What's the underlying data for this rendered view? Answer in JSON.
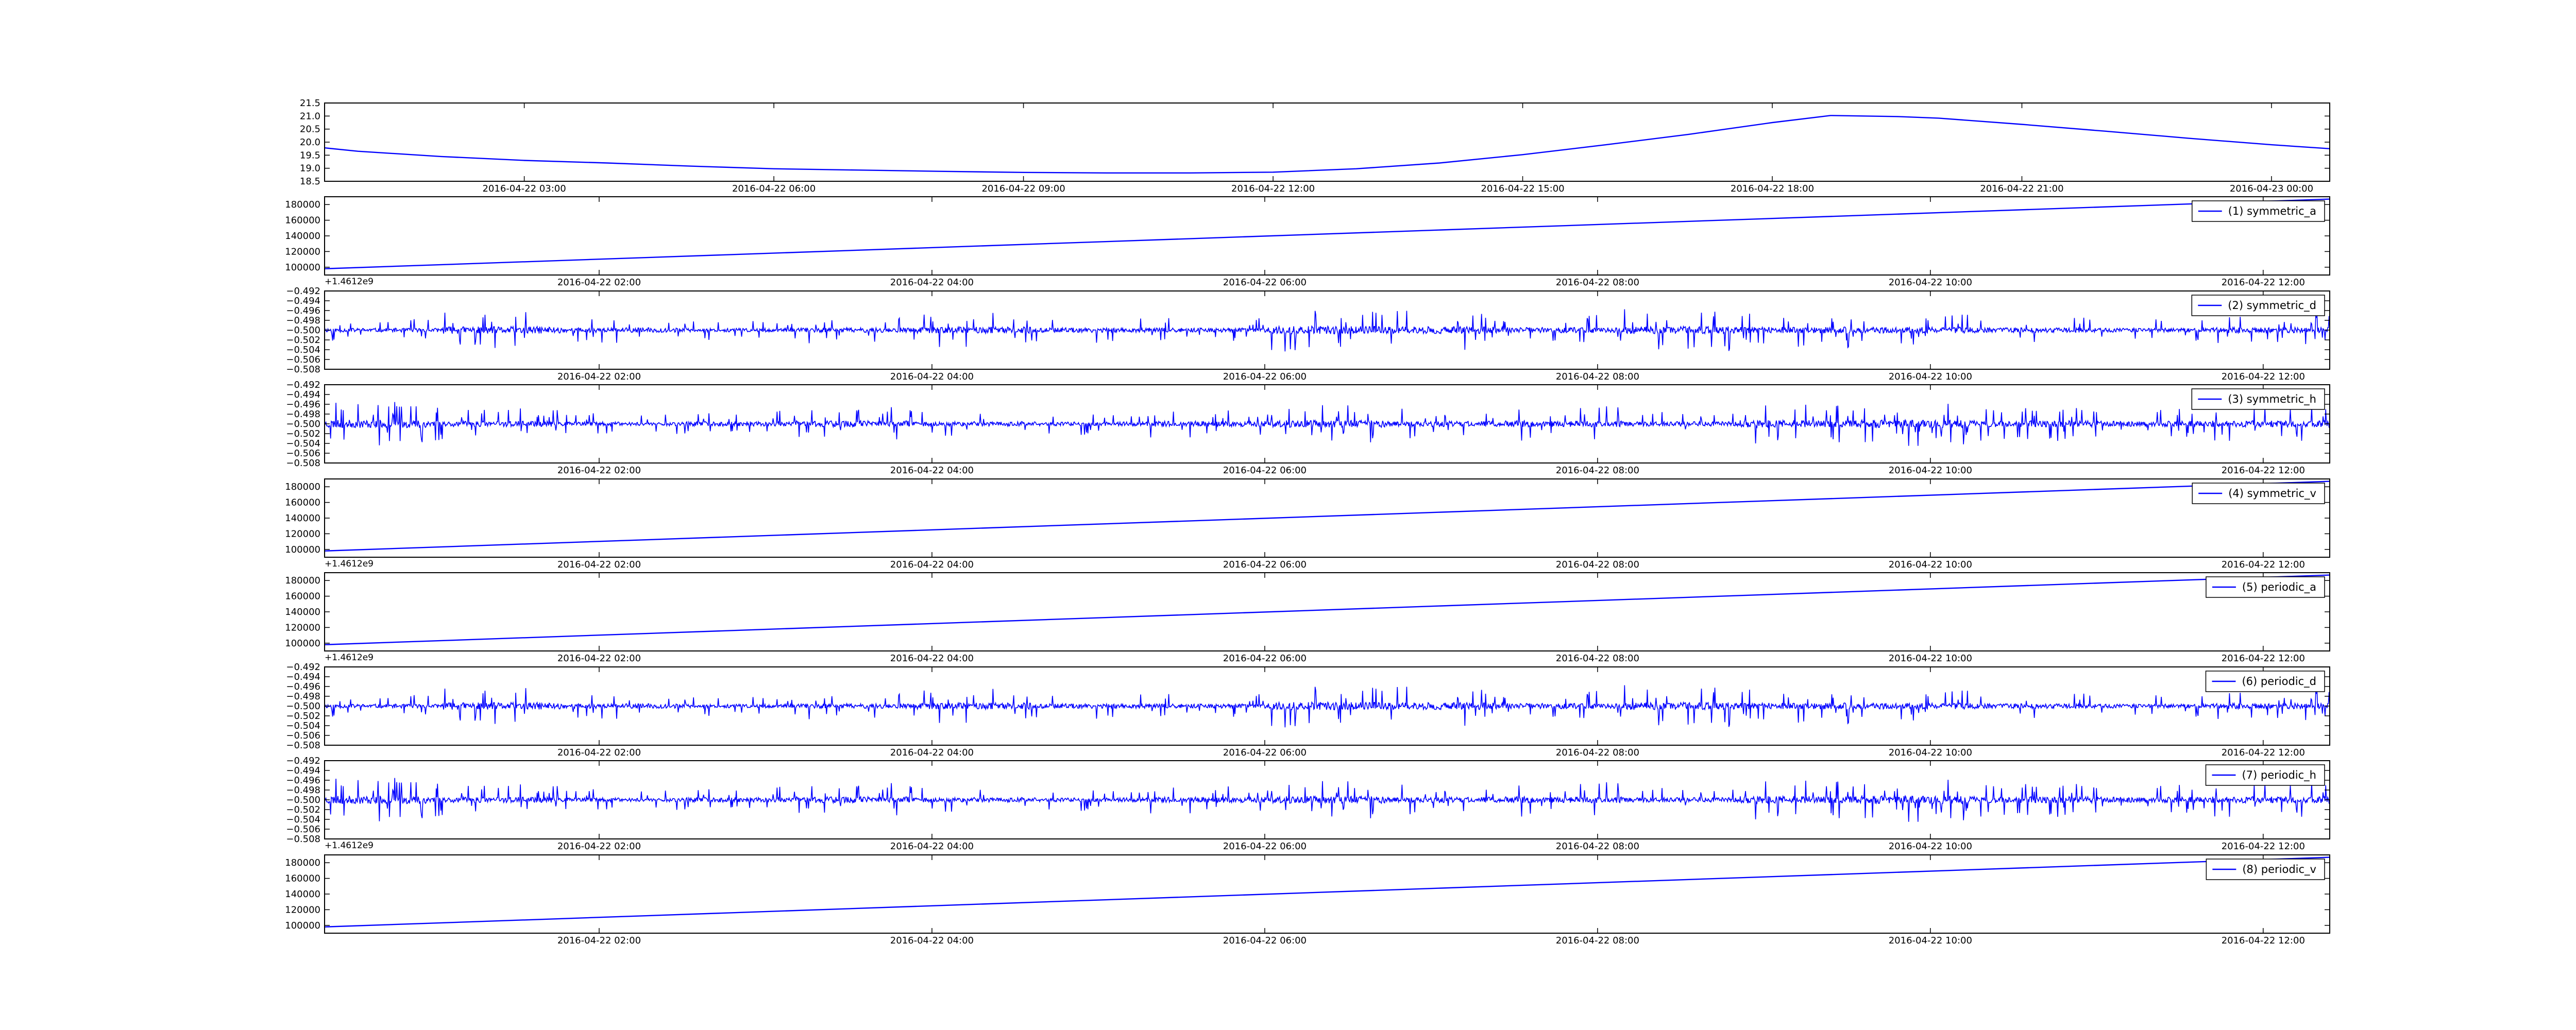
{
  "chart_data": [
    {
      "type": "line",
      "title": "",
      "xlabel": "",
      "ylabel": "",
      "y_ticks": [
        "18.5",
        "19.0",
        "19.5",
        "20.0",
        "20.5",
        "21.0",
        "21.5"
      ],
      "ylim": [
        18.5,
        21.5
      ],
      "x_ticks": [
        "2016-04-22 03:00",
        "2016-04-22 06:00",
        "2016-04-22 09:00",
        "2016-04-22 12:00",
        "2016-04-22 15:00",
        "2016-04-22 18:00",
        "2016-04-22 21:00",
        "2016-04-23 00:00"
      ],
      "x_range_hours": [
        0.6,
        24.7
      ],
      "points_hours": [
        0.6,
        1.0,
        2.0,
        3.0,
        4.0,
        5.0,
        6.0,
        7.0,
        8.0,
        9.0,
        10.0,
        11.0,
        12.0,
        13.0,
        14.0,
        15.0,
        16.0,
        17.0,
        18.0,
        18.7,
        19.5,
        20.0,
        21.0,
        22.0,
        23.0,
        24.0,
        24.7
      ],
      "values": [
        19.78,
        19.65,
        19.45,
        19.3,
        19.2,
        19.08,
        18.98,
        18.93,
        18.88,
        18.84,
        18.82,
        18.82,
        18.85,
        18.98,
        19.2,
        19.52,
        19.9,
        20.3,
        20.75,
        21.02,
        20.98,
        20.92,
        20.68,
        20.42,
        20.15,
        19.9,
        19.75
      ],
      "series": [
        {
          "color": "#0000ff"
        }
      ],
      "offset_label": "",
      "legend": "",
      "grid": false
    },
    {
      "type": "line",
      "y_ticks": [
        "100000",
        "120000",
        "140000",
        "160000",
        "180000"
      ],
      "ylim": [
        90000,
        190000
      ],
      "x_ticks": [
        "2016-04-22 02:00",
        "2016-04-22 04:00",
        "2016-04-22 06:00",
        "2016-04-22 08:00",
        "2016-04-22 10:00",
        "2016-04-22 12:00"
      ],
      "x_range_hours": [
        0.35,
        12.4
      ],
      "points_hours": [
        0.35,
        12.4
      ],
      "values": [
        98000,
        187000
      ],
      "series": [
        {
          "color": "#0000ff"
        }
      ],
      "offset_label": "+1.4612e9",
      "legend": "(1) symmetric_a",
      "legend_placement": "upper right",
      "grid": false
    },
    {
      "type": "line",
      "y_ticks": [
        "−0.508",
        "−0.506",
        "−0.504",
        "−0.502",
        "−0.500",
        "−0.498",
        "−0.496",
        "−0.494",
        "−0.492"
      ],
      "ylim": [
        -0.508,
        -0.492
      ],
      "x_ticks": [
        "2016-04-22 02:00",
        "2016-04-22 04:00",
        "2016-04-22 06:00",
        "2016-04-22 08:00",
        "2016-04-22 10:00",
        "2016-04-22 12:00"
      ],
      "x_range_hours": [
        0.35,
        12.4
      ],
      "noise": {
        "center": -0.5,
        "amplitude": 0.0045,
        "activity": [
          0.5,
          0.9,
          0.6,
          0.45,
          0.6,
          0.8,
          0.6,
          0.55,
          1.0,
          0.9,
          0.7,
          0.95,
          0.8,
          0.75,
          0.6,
          0.5,
          0.7
        ],
        "seed": 11
      },
      "series": [
        {
          "color": "#0000ff"
        }
      ],
      "offset_label": "",
      "legend": "(2) symmetric_d",
      "legend_placement": "upper right",
      "grid": false
    },
    {
      "type": "line",
      "y_ticks": [
        "−0.508",
        "−0.506",
        "−0.504",
        "−0.502",
        "−0.500",
        "−0.498",
        "−0.496",
        "−0.494",
        "−0.492"
      ],
      "ylim": [
        -0.508,
        -0.492
      ],
      "x_ticks": [
        "2016-04-22 02:00",
        "2016-04-22 04:00",
        "2016-04-22 06:00",
        "2016-04-22 08:00",
        "2016-04-22 10:00",
        "2016-04-22 12:00"
      ],
      "x_range_hours": [
        0.35,
        12.4
      ],
      "noise": {
        "center": -0.5,
        "amplitude": 0.0045,
        "activity": [
          1.0,
          0.7,
          0.5,
          0.6,
          0.8,
          0.6,
          0.5,
          0.7,
          0.9,
          0.7,
          0.8,
          0.6,
          0.9,
          1.0,
          0.8,
          0.7,
          0.8
        ],
        "seed": 23
      },
      "series": [
        {
          "color": "#0000ff"
        }
      ],
      "offset_label": "",
      "legend": "(3) symmetric_h",
      "legend_placement": "upper right",
      "grid": false
    },
    {
      "type": "line",
      "y_ticks": [
        "100000",
        "120000",
        "140000",
        "160000",
        "180000"
      ],
      "ylim": [
        90000,
        190000
      ],
      "x_ticks": [
        "2016-04-22 02:00",
        "2016-04-22 04:00",
        "2016-04-22 06:00",
        "2016-04-22 08:00",
        "2016-04-22 10:00",
        "2016-04-22 12:00"
      ],
      "x_range_hours": [
        0.35,
        12.4
      ],
      "points_hours": [
        0.35,
        12.4
      ],
      "values": [
        98000,
        187000
      ],
      "series": [
        {
          "color": "#0000ff"
        }
      ],
      "offset_label": "+1.4612e9",
      "legend": "(4) symmetric_v",
      "legend_placement": "upper right",
      "grid": false
    },
    {
      "type": "line",
      "y_ticks": [
        "100000",
        "120000",
        "140000",
        "160000",
        "180000"
      ],
      "ylim": [
        90000,
        190000
      ],
      "x_ticks": [
        "2016-04-22 02:00",
        "2016-04-22 04:00",
        "2016-04-22 06:00",
        "2016-04-22 08:00",
        "2016-04-22 10:00",
        "2016-04-22 12:00"
      ],
      "x_range_hours": [
        0.35,
        12.4
      ],
      "points_hours": [
        0.35,
        12.4
      ],
      "values": [
        98000,
        187000
      ],
      "series": [
        {
          "color": "#0000ff"
        }
      ],
      "offset_label": "+1.4612e9",
      "legend": "(5) periodic_a",
      "legend_placement": "upper right",
      "grid": false
    },
    {
      "type": "line",
      "y_ticks": [
        "−0.508",
        "−0.506",
        "−0.504",
        "−0.502",
        "−0.500",
        "−0.498",
        "−0.496",
        "−0.494",
        "−0.492"
      ],
      "ylim": [
        -0.508,
        -0.492
      ],
      "x_ticks": [
        "2016-04-22 02:00",
        "2016-04-22 04:00",
        "2016-04-22 06:00",
        "2016-04-22 08:00",
        "2016-04-22 10:00",
        "2016-04-22 12:00"
      ],
      "x_range_hours": [
        0.35,
        12.4
      ],
      "noise": {
        "center": -0.5,
        "amplitude": 0.0045,
        "activity": [
          0.5,
          0.9,
          0.6,
          0.45,
          0.6,
          0.8,
          0.6,
          0.55,
          1.0,
          0.9,
          0.7,
          0.95,
          0.8,
          0.75,
          0.6,
          0.5,
          0.7
        ],
        "seed": 11
      },
      "series": [
        {
          "color": "#0000ff"
        }
      ],
      "offset_label": "",
      "legend": "(6) periodic_d",
      "legend_placement": "upper right",
      "grid": false
    },
    {
      "type": "line",
      "y_ticks": [
        "−0.508",
        "−0.506",
        "−0.504",
        "−0.502",
        "−0.500",
        "−0.498",
        "−0.496",
        "−0.494",
        "−0.492"
      ],
      "ylim": [
        -0.508,
        -0.492
      ],
      "x_ticks": [
        "2016-04-22 02:00",
        "2016-04-22 04:00",
        "2016-04-22 06:00",
        "2016-04-22 08:00",
        "2016-04-22 10:00",
        "2016-04-22 12:00"
      ],
      "x_range_hours": [
        0.35,
        12.4
      ],
      "noise": {
        "center": -0.5,
        "amplitude": 0.0045,
        "activity": [
          1.0,
          0.7,
          0.5,
          0.6,
          0.8,
          0.6,
          0.5,
          0.7,
          0.9,
          0.7,
          0.8,
          0.6,
          0.9,
          1.0,
          0.8,
          0.7,
          0.8
        ],
        "seed": 23
      },
      "series": [
        {
          "color": "#0000ff"
        }
      ],
      "offset_label": "+1.4612e9",
      "legend": "(7) periodic_h",
      "legend_placement": "upper right",
      "grid": false
    },
    {
      "type": "line",
      "y_ticks": [
        "100000",
        "120000",
        "140000",
        "160000",
        "180000"
      ],
      "ylim": [
        90000,
        190000
      ],
      "x_ticks": [
        "2016-04-22 02:00",
        "2016-04-22 04:00",
        "2016-04-22 06:00",
        "2016-04-22 08:00",
        "2016-04-22 10:00",
        "2016-04-22 12:00"
      ],
      "x_range_hours": [
        0.35,
        12.4
      ],
      "points_hours": [
        0.35,
        12.4
      ],
      "values": [
        98000,
        187000
      ],
      "series": [
        {
          "color": "#0000ff"
        }
      ],
      "offset_label": "",
      "legend": "(8) periodic_v",
      "legend_placement": "upper right",
      "grid": false
    }
  ]
}
